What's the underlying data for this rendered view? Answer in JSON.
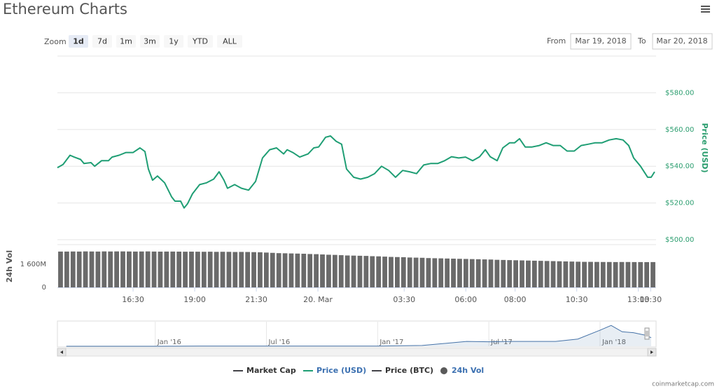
{
  "header": {
    "title": "Ethereum Charts"
  },
  "controls": {
    "zoom_label": "Zoom",
    "zoom_buttons": [
      "1d",
      "7d",
      "1m",
      "3m",
      "1y",
      "YTD",
      "ALL"
    ],
    "selected": "1d",
    "from_label": "From",
    "from": "Mar 19, 2018",
    "to_label": "To",
    "to": "Mar 20, 2018"
  },
  "chart_data": [
    {
      "type": "line",
      "ylabel": "Price (USD)",
      "y_axis_position": "right",
      "grid": true,
      "xlim": [
        13.43,
        37.72
      ],
      "xticks": [
        {
          "value": 16.5,
          "label": "16:30"
        },
        {
          "value": 19,
          "label": "19:00"
        },
        {
          "value": 21.5,
          "label": "21:30"
        },
        {
          "value": 24,
          "label": "20. Mar"
        },
        {
          "value": 27.5,
          "label": "03:30"
        },
        {
          "value": 30,
          "label": "06:00"
        },
        {
          "value": 32,
          "label": "08:00"
        },
        {
          "value": 34.5,
          "label": "10:30"
        },
        {
          "value": 37,
          "label": "13:00"
        },
        {
          "value": 37.5,
          "label": "13:30"
        }
      ],
      "ylim": [
        500,
        600
      ],
      "yticks": [
        {
          "value": 500,
          "label": "$500.00"
        },
        {
          "value": 520,
          "label": "$520.00"
        },
        {
          "value": 540,
          "label": "$540.00"
        },
        {
          "value": 560,
          "label": "$560.00"
        },
        {
          "value": 580,
          "label": "$580.00"
        }
      ],
      "series": [
        {
          "name": "Price (USD)",
          "color": "#1f9e74",
          "x": [
            13.43,
            13.66,
            13.94,
            14.11,
            14.37,
            14.51,
            14.79,
            14.94,
            15.22,
            15.5,
            15.65,
            15.93,
            16.21,
            16.5,
            16.78,
            16.98,
            17.12,
            17.29,
            17.49,
            17.78,
            18.06,
            18.2,
            18.43,
            18.57,
            18.71,
            18.91,
            19.2,
            19.48,
            19.77,
            19.99,
            20.19,
            20.33,
            20.62,
            20.9,
            21.19,
            21.47,
            21.75,
            22.04,
            22.32,
            22.61,
            22.75,
            22.98,
            23.26,
            23.6,
            23.83,
            24.03,
            24.31,
            24.51,
            24.74,
            24.96,
            25.16,
            25.45,
            25.73,
            26.02,
            26.3,
            26.58,
            26.87,
            27.15,
            27.44,
            27.72,
            28.0,
            28.29,
            28.57,
            28.86,
            29.14,
            29.42,
            29.71,
            29.99,
            30.28,
            30.56,
            30.79,
            30.99,
            31.27,
            31.5,
            31.78,
            31.98,
            32.18,
            32.41,
            32.69,
            32.98,
            33.26,
            33.54,
            33.83,
            34.11,
            34.4,
            34.68,
            34.96,
            35.25,
            35.53,
            35.82,
            36.1,
            36.38,
            36.61,
            36.81,
            37.09,
            37.38,
            37.52,
            37.66
          ],
          "values": [
            539.2,
            541,
            546,
            545,
            543.7,
            541.5,
            542,
            540,
            543,
            543,
            545,
            546,
            547.5,
            547.5,
            550,
            548,
            538.5,
            532.4,
            534.7,
            531,
            523.4,
            521,
            521,
            517.3,
            519.6,
            525,
            530,
            531,
            533,
            537,
            532.4,
            528,
            530,
            528,
            527,
            531.7,
            544.5,
            549,
            550,
            546.7,
            549,
            547.5,
            545,
            546.7,
            550,
            550.5,
            555.8,
            556.5,
            553.6,
            552,
            538.5,
            534,
            533,
            534,
            536,
            540,
            537.7,
            534,
            537.7,
            537,
            536,
            540.7,
            541.5,
            541.5,
            543,
            545.2,
            544.5,
            545,
            543,
            545.2,
            549,
            545.2,
            543,
            550,
            552.8,
            552.8,
            555,
            550.5,
            550.5,
            551.3,
            552.8,
            551.3,
            551.3,
            548.3,
            548.3,
            551.3,
            552,
            552.8,
            552.8,
            554.3,
            555,
            554.3,
            551.3,
            544.5,
            540,
            534,
            534,
            537
          ]
        }
      ]
    },
    {
      "type": "bar",
      "ylabel": "24h Vol",
      "color": "#6a6a6a",
      "ylim": [
        0,
        2900
      ],
      "yticks": [
        0,
        {
          "value": 1600,
          "label": "1 600M"
        }
      ],
      "categories": [
        null,
        null,
        null,
        null,
        null,
        null,
        null,
        null,
        null,
        null,
        null,
        null,
        null,
        null,
        null,
        null,
        null,
        null,
        null,
        null,
        null,
        null,
        null,
        null,
        null,
        null,
        null,
        null,
        null,
        null,
        null,
        null,
        null,
        null,
        null,
        null,
        null,
        null,
        null,
        null,
        null,
        null,
        null,
        null,
        null,
        null,
        null,
        null,
        null,
        null,
        null,
        null,
        null,
        null,
        null,
        null,
        null,
        null,
        null,
        null,
        null,
        null,
        null,
        null,
        null,
        null,
        null,
        null,
        null,
        null,
        null,
        null,
        null,
        null,
        null,
        null,
        null,
        null,
        null,
        null,
        null,
        null,
        null,
        null,
        null,
        null,
        null,
        null,
        null,
        null,
        null,
        null,
        null,
        null,
        null,
        null
      ],
      "values": [
        2470,
        2470,
        2475,
        2470,
        2480,
        2475,
        2470,
        2480,
        2475,
        2480,
        2480,
        2475,
        2470,
        2475,
        2480,
        2470,
        2465,
        2470,
        2470,
        2465,
        2460,
        2465,
        2460,
        2455,
        2460,
        2450,
        2455,
        2450,
        2440,
        2445,
        2440,
        2430,
        2420,
        2400,
        2380,
        2360,
        2350,
        2340,
        2330,
        2320,
        2300,
        2290,
        2270,
        2250,
        2240,
        2220,
        2200,
        2190,
        2180,
        2170,
        2150,
        2140,
        2120,
        2100,
        2090,
        2080,
        2060,
        2050,
        2040,
        2020,
        2010,
        2000,
        1990,
        1980,
        1970,
        1960,
        1950,
        1940,
        1930,
        1920,
        1900,
        1890,
        1880,
        1870,
        1860,
        1850,
        1840,
        1830,
        1820,
        1810,
        1800,
        1790,
        1780,
        1770,
        1760,
        1760,
        1755,
        1750,
        1750,
        1745,
        1750,
        1750,
        1745,
        1745,
        1740,
        1745
      ]
    },
    {
      "type": "area",
      "color": "#4572a7",
      "xlim": [
        2015.56,
        2018.23
      ],
      "xticks": [
        {
          "value": 2016,
          "label": "Jan '16"
        },
        {
          "value": 2016.5,
          "label": "Jul '16"
        },
        {
          "value": 2017,
          "label": "Jan '17"
        },
        {
          "value": 2017.5,
          "label": "Jul '17"
        },
        {
          "value": 2018,
          "label": "Jan '18"
        }
      ],
      "ylim": [
        0,
        1400
      ],
      "x": [
        2015.6,
        2015.8,
        2016.0,
        2016.2,
        2016.4,
        2016.6,
        2016.8,
        2017.0,
        2017.2,
        2017.4,
        2017.5,
        2017.6,
        2017.7,
        2017.8,
        2017.9,
        2018.0,
        2018.05,
        2018.1,
        2018.15,
        2018.2,
        2018.23
      ],
      "values": [
        1,
        1,
        1,
        10,
        14,
        12,
        11,
        10,
        50,
        300,
        280,
        300,
        300,
        300,
        450,
        1000,
        1300,
        900,
        850,
        700,
        540
      ]
    }
  ],
  "legend": [
    {
      "name": "Market Cap",
      "color": "#434348",
      "symbol": "line"
    },
    {
      "name": "Price (USD)",
      "color": "#1f9e74",
      "symbol": "line"
    },
    {
      "name": "Price (BTC)",
      "color": "#434348",
      "symbol": "line"
    },
    {
      "name": "24h Vol",
      "color": "#5a5a5a",
      "symbol": "circle"
    }
  ],
  "credit": "coinmarketcap.com"
}
